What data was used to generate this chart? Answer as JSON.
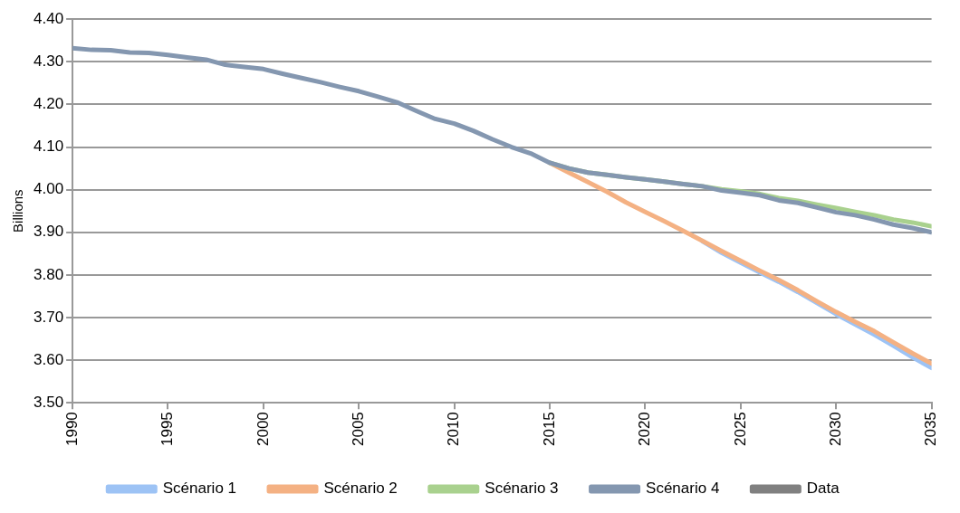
{
  "chart_data": {
    "type": "line",
    "ylabel": "Billions",
    "x": [
      1990,
      1991,
      1992,
      1993,
      1994,
      1995,
      1996,
      1997,
      1998,
      1999,
      2000,
      2001,
      2002,
      2003,
      2004,
      2005,
      2006,
      2007,
      2008,
      2009,
      2010,
      2011,
      2012,
      2013,
      2014,
      2015,
      2016,
      2017,
      2018,
      2019,
      2020,
      2021,
      2022,
      2023,
      2024,
      2025,
      2026,
      2027,
      2028,
      2029,
      2030,
      2031,
      2032,
      2033,
      2034,
      2035
    ],
    "series": [
      {
        "name": "Scénario 1",
        "color": "#9dc3f5",
        "values": [
          null,
          null,
          null,
          null,
          null,
          null,
          null,
          null,
          null,
          null,
          null,
          null,
          null,
          null,
          null,
          null,
          null,
          null,
          null,
          null,
          null,
          null,
          null,
          null,
          null,
          null,
          null,
          null,
          null,
          null,
          null,
          null,
          null,
          3.879,
          3.852,
          3.829,
          3.806,
          3.784,
          3.76,
          3.734,
          3.708,
          3.684,
          3.66,
          3.634,
          3.607,
          3.582
        ]
      },
      {
        "name": "Scénario 2",
        "color": "#f4b183",
        "values": [
          null,
          null,
          null,
          null,
          null,
          null,
          null,
          null,
          null,
          null,
          null,
          null,
          null,
          null,
          null,
          null,
          null,
          null,
          null,
          null,
          null,
          null,
          null,
          null,
          null,
          4.063,
          4.04,
          4.018,
          3.995,
          3.97,
          3.948,
          3.926,
          3.903,
          3.88,
          3.856,
          3.833,
          3.81,
          3.788,
          3.764,
          3.738,
          3.713,
          3.69,
          3.668,
          3.642,
          3.616,
          3.592
        ]
      },
      {
        "name": "Scénario 3",
        "color": "#a9d18e",
        "values": [
          null,
          null,
          null,
          null,
          null,
          null,
          null,
          null,
          null,
          null,
          null,
          null,
          null,
          null,
          null,
          null,
          null,
          null,
          null,
          null,
          null,
          null,
          null,
          null,
          null,
          4.063,
          4.05,
          4.04,
          4.035,
          4.029,
          4.024,
          4.019,
          4.013,
          4.008,
          4.001,
          3.996,
          3.99,
          3.98,
          3.974,
          3.965,
          3.957,
          3.948,
          3.94,
          3.93,
          3.923,
          3.914
        ]
      },
      {
        "name": "Scénario 4",
        "color": "#8497b0",
        "values": [
          4.332,
          4.328,
          4.327,
          4.322,
          4.321,
          4.316,
          4.31,
          4.305,
          4.293,
          4.288,
          4.283,
          4.272,
          4.262,
          4.252,
          4.241,
          4.231,
          4.218,
          4.205,
          4.185,
          4.166,
          4.155,
          4.138,
          4.118,
          4.1,
          4.085,
          4.063,
          4.05,
          4.04,
          4.035,
          4.029,
          4.024,
          4.019,
          4.013,
          4.008,
          3.998,
          3.993,
          3.987,
          3.975,
          3.969,
          3.958,
          3.947,
          3.94,
          3.93,
          3.918,
          3.91,
          3.9
        ]
      },
      {
        "name": "Data",
        "color": "#808080",
        "values": [
          null,
          null,
          null,
          null,
          null,
          null,
          null,
          null,
          null,
          null,
          null,
          null,
          null,
          null,
          null,
          null,
          null,
          null,
          null,
          null,
          null,
          null,
          null,
          null,
          null,
          null,
          null,
          null,
          null,
          null,
          null,
          null,
          null,
          null,
          null,
          null,
          null,
          null,
          null,
          null,
          null,
          null,
          null,
          null,
          null,
          null
        ]
      }
    ],
    "xlim": [
      1990,
      2035
    ],
    "xticks": [
      1990,
      1995,
      2000,
      2005,
      2010,
      2015,
      2020,
      2025,
      2030,
      2035
    ],
    "ylim": [
      3.5,
      4.4
    ],
    "yticks": [
      {
        "value": 3.5,
        "label": "3.50"
      },
      {
        "value": 3.6,
        "label": "3.60"
      },
      {
        "value": 3.7,
        "label": "3.70"
      },
      {
        "value": 3.8,
        "label": "3.80"
      },
      {
        "value": 3.9,
        "label": "3.90"
      },
      {
        "value": 4.0,
        "label": "4.00"
      },
      {
        "value": 4.1,
        "label": "4.10"
      },
      {
        "value": 4.2,
        "label": "4.20"
      },
      {
        "value": 4.3,
        "label": "4.30"
      },
      {
        "value": 4.4,
        "label": "4.40"
      }
    ],
    "grid": "y",
    "legend": "bottom",
    "marker": "none",
    "line_style": "solid"
  }
}
